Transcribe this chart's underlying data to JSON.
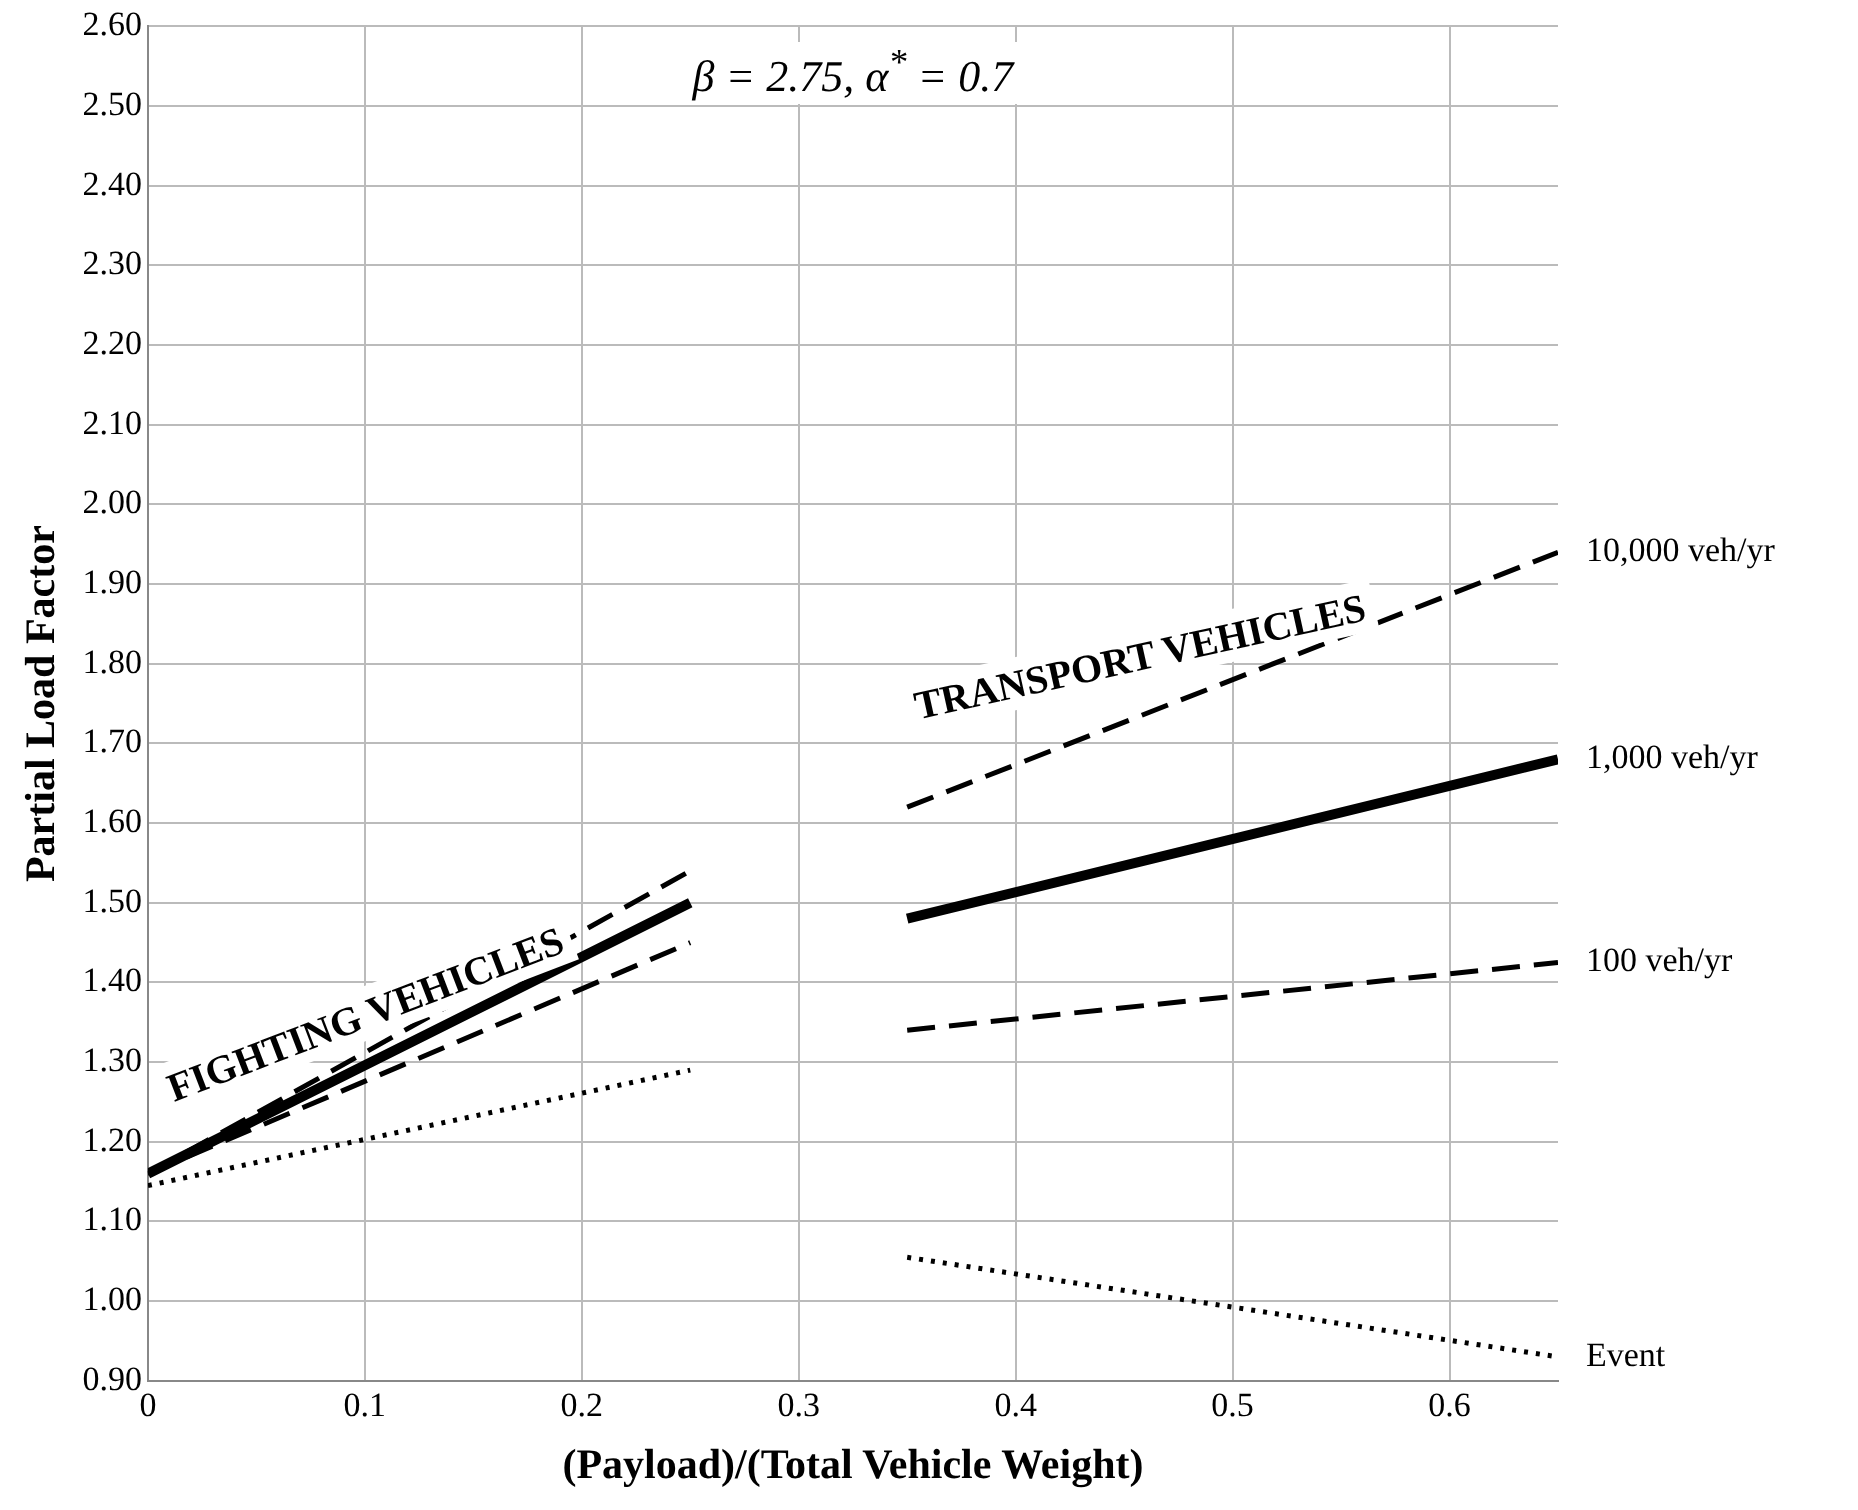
{
  "chart_data": {
    "type": "line",
    "xlabel": "(Payload)/(Total Vehicle Weight)",
    "ylabel": "Partial Load Factor",
    "annotations": [
      "β = 2.75, α$^{*}$ = 0.7",
      "FIGHTING VEHICLES",
      "TRANSPORT VEHICLES"
    ],
    "x": [
      0,
      0.25,
      0.3,
      0.35,
      0.65
    ],
    "series": [
      {
        "name": "10,000 veh/yr",
        "color": "#000000",
        "line_style": "dashed",
        "values": [
          1.16,
          1.54,
          null,
          1.62,
          1.94
        ]
      },
      {
        "name": "1,000 veh/yr",
        "color": "#000000",
        "line_style": "solid",
        "values": [
          1.16,
          1.5,
          null,
          1.48,
          1.68
        ]
      },
      {
        "name": "100 veh/yr",
        "color": "#000000",
        "line_style": "dashed",
        "values": [
          1.16,
          1.45,
          null,
          1.34,
          1.425
        ]
      },
      {
        "name": "Event",
        "color": "#000000",
        "line_style": "dotted",
        "values": [
          1.145,
          1.29,
          null,
          1.055,
          0.93
        ]
      }
    ],
    "xlim": [
      0,
      0.65
    ],
    "xticks": [
      0,
      0.1,
      0.2,
      0.3,
      0.4,
      0.5,
      0.6
    ],
    "ylim": [
      0.9,
      2.6
    ],
    "yticks": [
      {
        "value": 0.9,
        "label": "0.90"
      },
      {
        "value": 1.0,
        "label": "1.00"
      },
      {
        "value": 1.1,
        "label": "1.10"
      },
      {
        "value": 1.2,
        "label": "1.20"
      },
      {
        "value": 1.3,
        "label": "1.30"
      },
      {
        "value": 1.4,
        "label": "1.40"
      },
      {
        "value": 1.5,
        "label": "1.50"
      },
      {
        "value": 1.6,
        "label": "1.60"
      },
      {
        "value": 1.7,
        "label": "1.70"
      },
      {
        "value": 1.8,
        "label": "1.80"
      },
      {
        "value": 1.9,
        "label": "1.90"
      },
      {
        "value": 2.0,
        "label": "2.00"
      },
      {
        "value": 2.1,
        "label": "2.10"
      },
      {
        "value": 2.2,
        "label": "2.20"
      },
      {
        "value": 2.3,
        "label": "2.30"
      },
      {
        "value": 2.4,
        "label": "2.40"
      },
      {
        "value": 2.5,
        "label": "2.50"
      },
      {
        "value": 2.6,
        "label": "2.60"
      }
    ],
    "grid": true,
    "legend": false,
    "marker": "none"
  }
}
